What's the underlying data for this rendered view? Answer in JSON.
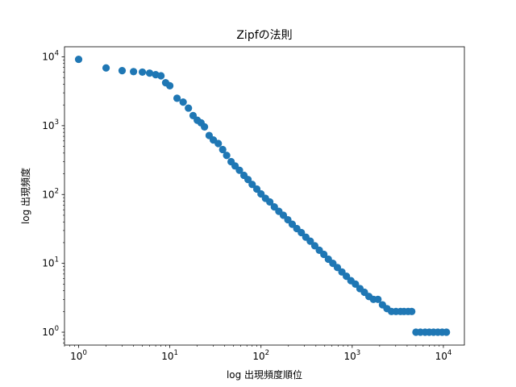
{
  "chart_data": {
    "type": "scatter",
    "title": "Zipfの法則",
    "xlabel": "log 出現頻度順位",
    "ylabel": "log 出現頻度",
    "xscale": "log",
    "yscale": "log",
    "xlim": [
      0.7,
      17000
    ],
    "ylim": [
      0.65,
      14000
    ],
    "grid": false,
    "marker_color": "#1f77b4",
    "x_ticks": [
      {
        "value": 1,
        "label": "10",
        "exp": "0"
      },
      {
        "value": 10,
        "label": "10",
        "exp": "1"
      },
      {
        "value": 100,
        "label": "10",
        "exp": "2"
      },
      {
        "value": 1000,
        "label": "10",
        "exp": "3"
      },
      {
        "value": 10000,
        "label": "10",
        "exp": "4"
      }
    ],
    "y_ticks": [
      {
        "value": 1,
        "label": "10",
        "exp": "0"
      },
      {
        "value": 10,
        "label": "10",
        "exp": "1"
      },
      {
        "value": 100,
        "label": "10",
        "exp": "2"
      },
      {
        "value": 1000,
        "label": "10",
        "exp": "3"
      },
      {
        "value": 10000,
        "label": "10",
        "exp": "4"
      }
    ],
    "series": [
      {
        "x": [
          1,
          2,
          3,
          4,
          5,
          6,
          7,
          8,
          9,
          10,
          12,
          14,
          16,
          18,
          20,
          22,
          24,
          27,
          30,
          34,
          38,
          42,
          47,
          52,
          58,
          65,
          72,
          80,
          90,
          100,
          112,
          125,
          140,
          157,
          176,
          197,
          220,
          247,
          277,
          310,
          347,
          389,
          436,
          489,
          548,
          614,
          688,
          771,
          864,
          968,
          1085,
          1216,
          1362,
          1526,
          1710,
          1916,
          2147,
          2406,
          2696,
          3021,
          3385,
          3700,
          4100,
          4500,
          5000,
          5600,
          6300,
          7000,
          7800,
          8700,
          9700,
          10800
        ],
        "y": [
          9200,
          6900,
          6300,
          6100,
          6000,
          5800,
          5500,
          5300,
          4200,
          3800,
          2500,
          2200,
          1800,
          1400,
          1200,
          1100,
          960,
          720,
          620,
          550,
          450,
          370,
          300,
          260,
          225,
          190,
          165,
          140,
          120,
          102,
          88,
          78,
          66,
          57,
          50,
          43,
          37,
          32,
          28,
          24,
          21,
          18,
          15.5,
          13.5,
          11.5,
          10,
          8.7,
          7.5,
          6.5,
          5.6,
          5,
          4.3,
          3.8,
          3.3,
          3,
          3,
          2.5,
          2.2,
          2,
          2,
          2,
          2,
          2,
          2,
          1,
          1,
          1,
          1,
          1,
          1,
          1,
          1
        ]
      }
    ]
  }
}
